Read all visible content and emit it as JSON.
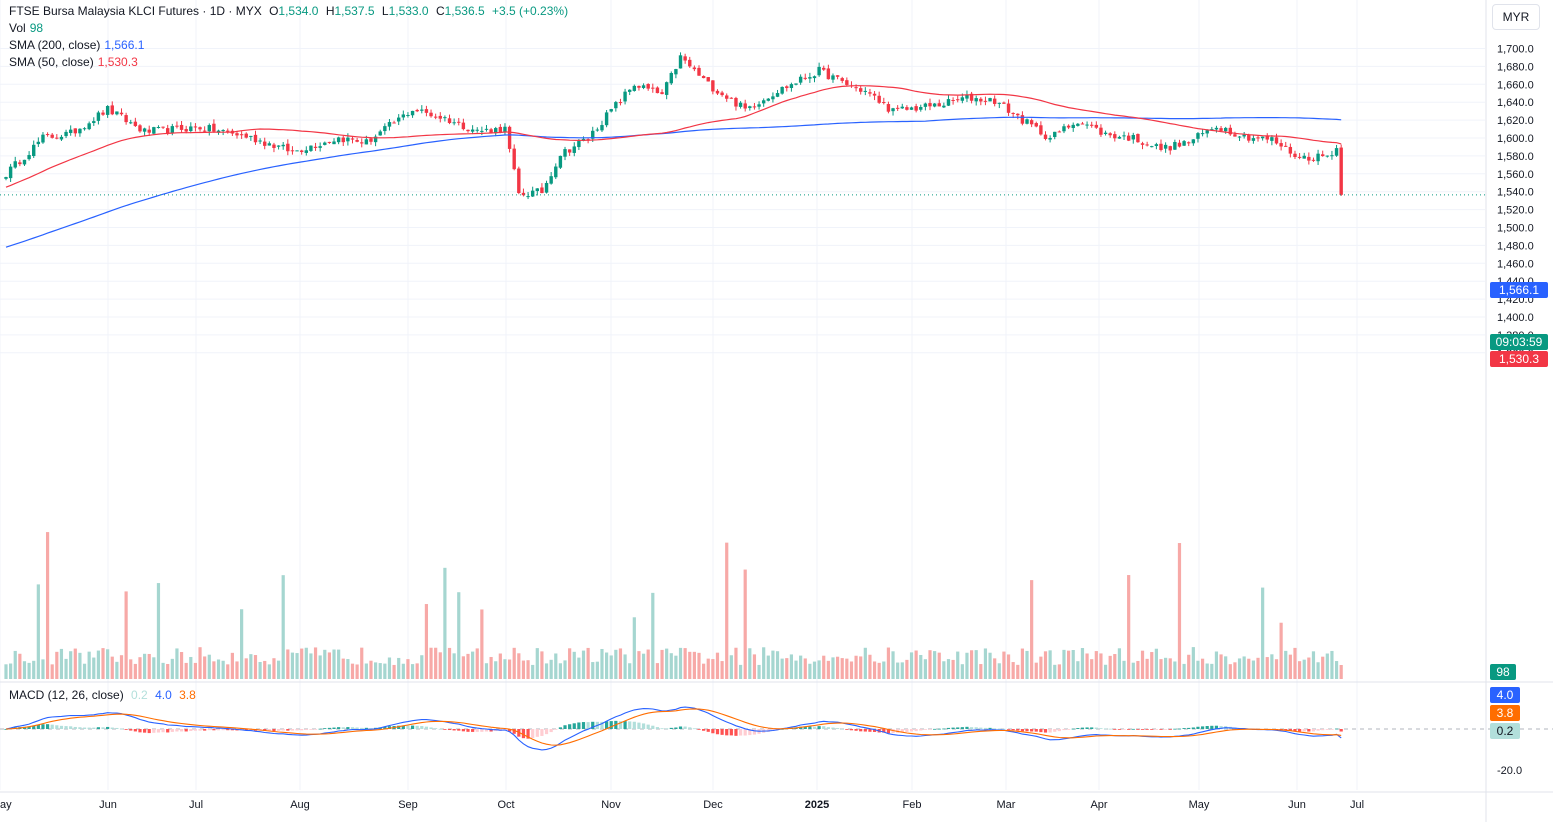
{
  "header": {
    "symbol": "FTSE Bursa Malaysia KLCI Futures · 1D · MYX",
    "open_label": "O",
    "open": "1,534.0",
    "high_label": "H",
    "high": "1,537.5",
    "low_label": "L",
    "low": "1,533.0",
    "close_label": "C",
    "close": "1,536.5",
    "change": "+3.5 (+0.23%)",
    "vol_label": "Vol",
    "vol": "98",
    "sma200_label": "SMA (200, close)",
    "sma200": "1,566.1",
    "sma50_label": "SMA (50, close)",
    "sma50": "1,530.3",
    "macd_label": "MACD (12, 26, close)",
    "macd_hist": "0.2",
    "macd_line": "4.0",
    "macd_signal": "3.8",
    "currency": "MYR"
  },
  "badges": {
    "sma200": "1,566.1",
    "countdown": "09:03:59",
    "sma50": "1,530.3",
    "vol": "98",
    "macd_line": "4.0",
    "macd_signal": "3.8",
    "macd_hist": "0.2"
  },
  "colors": {
    "up": "#089981",
    "down": "#f23645",
    "sma200": "#2962ff",
    "sma50": "#f23645",
    "macd": "#2962ff",
    "signal": "#ff6d00",
    "grid": "#f0f3fa",
    "text": "#131722"
  },
  "chart_data": {
    "type": "candlestick",
    "timeframe": "1D",
    "price_axis": {
      "min": 1350,
      "max": 1710,
      "ticks": [
        "1,360.0",
        "1,380.0",
        "1,400.0",
        "1,420.0",
        "1,440.0",
        "1,460.0",
        "1,480.0",
        "1,500.0",
        "1,520.0",
        "1,540.0",
        "1,560.0",
        "1,580.0",
        "1,600.0",
        "1,620.0",
        "1,640.0",
        "1,660.0",
        "1,680.0",
        "1,700.0"
      ]
    },
    "macd_axis": {
      "ticks": [
        "-20.0"
      ]
    },
    "x_axis": {
      "labels": [
        "ay",
        "Jun",
        "Jul",
        "Aug",
        "Sep",
        "Oct",
        "Nov",
        "Dec",
        "2025",
        "Feb",
        "Mar",
        "Apr",
        "May",
        "Jun",
        "Jul"
      ],
      "bold": [
        "2025"
      ]
    },
    "candles_count": 290,
    "price_anchors": [
      [
        0,
        1560
      ],
      [
        8,
        1600
      ],
      [
        14,
        1605
      ],
      [
        22,
        1632
      ],
      [
        30,
        1607
      ],
      [
        42,
        1612
      ],
      [
        52,
        1602
      ],
      [
        62,
        1585
      ],
      [
        72,
        1600
      ],
      [
        78,
        1595
      ],
      [
        88,
        1632
      ],
      [
        95,
        1622
      ],
      [
        102,
        1608
      ],
      [
        108,
        1610
      ],
      [
        111,
        1537
      ],
      [
        116,
        1540
      ],
      [
        120,
        1582
      ],
      [
        126,
        1600
      ],
      [
        130,
        1625
      ],
      [
        136,
        1660
      ],
      [
        142,
        1648
      ],
      [
        146,
        1690
      ],
      [
        152,
        1660
      ],
      [
        160,
        1632
      ],
      [
        166,
        1650
      ],
      [
        172,
        1665
      ],
      [
        176,
        1675
      ],
      [
        182,
        1660
      ],
      [
        186,
        1652
      ],
      [
        192,
        1630
      ],
      [
        196,
        1633
      ],
      [
        202,
        1637
      ],
      [
        208,
        1645
      ],
      [
        214,
        1642
      ],
      [
        220,
        1620
      ],
      [
        226,
        1600
      ],
      [
        232,
        1620
      ],
      [
        238,
        1604
      ],
      [
        244,
        1600
      ],
      [
        250,
        1588
      ],
      [
        256,
        1595
      ],
      [
        262,
        1614
      ],
      [
        268,
        1602
      ],
      [
        274,
        1598
      ],
      [
        280,
        1578
      ],
      [
        286,
        1580
      ],
      [
        292,
        1607
      ],
      [
        296,
        1612
      ],
      [
        301,
        1642
      ],
      [
        304,
        1630
      ],
      [
        308,
        1605
      ],
      [
        312,
        1582
      ],
      [
        318,
        1548
      ],
      [
        324,
        1582
      ],
      [
        330,
        1542
      ],
      [
        336,
        1590
      ]
    ],
    "ohlc_last": {
      "open": 1534.0,
      "high": 1537.5,
      "low": 1533.0,
      "close": 1536.5
    },
    "sma50_last": 1530.3,
    "sma200_last": 1566.1,
    "volume_last": 98,
    "macd_last": {
      "macd": 4.0,
      "signal": 3.8,
      "histogram": 0.2
    }
  }
}
